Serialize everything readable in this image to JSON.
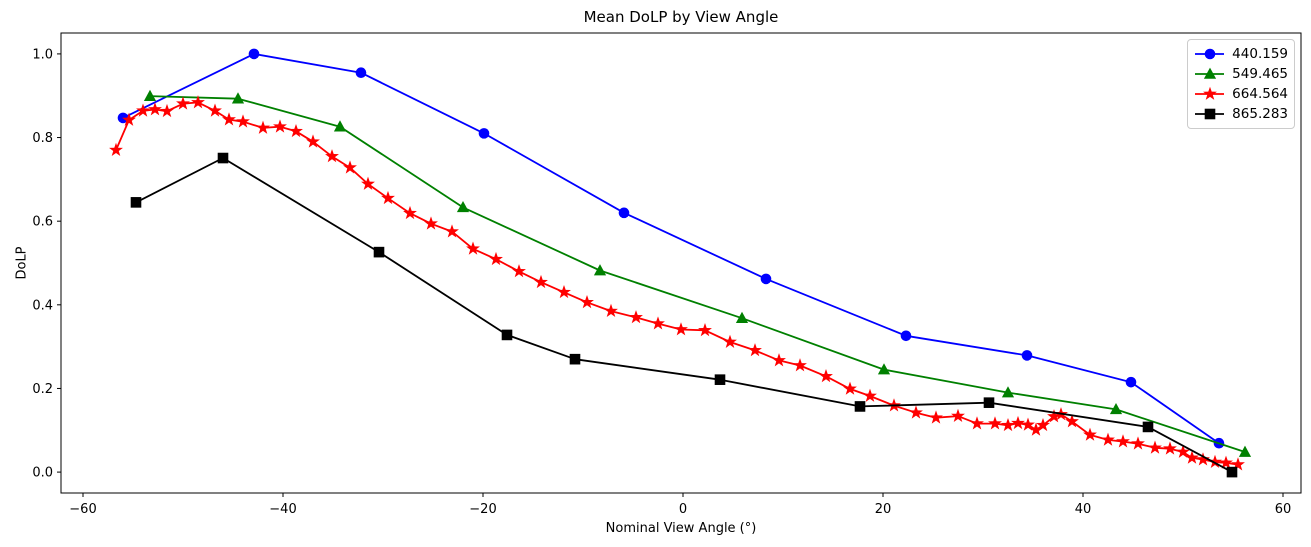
{
  "chart_data": {
    "type": "line",
    "title": "Mean DoLP by View Angle",
    "xlabel": "Nominal View Angle (°)",
    "ylabel": "DoLP",
    "xlim": [
      -62.2,
      61.8
    ],
    "ylim": [
      -0.05,
      1.05
    ],
    "grid": false,
    "x_ticks": {
      "values": [
        -60,
        -40,
        -20,
        0,
        20,
        40,
        60
      ],
      "labels": [
        "−60",
        "−40",
        "−20",
        "0",
        "20",
        "40",
        "60"
      ]
    },
    "y_ticks": {
      "values": [
        0.0,
        0.2,
        0.4,
        0.6,
        0.8,
        1.0
      ],
      "labels": [
        "0.0",
        "0.2",
        "0.4",
        "0.6",
        "0.8",
        "1.0"
      ]
    },
    "legend": {
      "position": "upper right",
      "border_color": "#cccccc"
    },
    "series": [
      {
        "name": "440.159",
        "color": "#0000ff",
        "marker": "circle",
        "x": [
          -56.0,
          -42.9,
          -32.2,
          -19.9,
          -5.9,
          8.3,
          22.3,
          34.4,
          44.8,
          53.6
        ],
        "y": [
          0.847,
          1.0,
          0.955,
          0.81,
          0.62,
          0.462,
          0.326,
          0.279,
          0.215,
          0.069
        ]
      },
      {
        "name": "549.465",
        "color": "#008000",
        "marker": "triangle",
        "x": [
          -53.3,
          -44.5,
          -34.3,
          -22.0,
          -8.3,
          5.9,
          20.1,
          32.5,
          43.3,
          56.2
        ],
        "y": [
          0.899,
          0.893,
          0.826,
          0.633,
          0.482,
          0.368,
          0.245,
          0.19,
          0.15,
          0.048
        ]
      },
      {
        "name": "664.564",
        "color": "#ff0000",
        "marker": "star",
        "x": [
          -56.7,
          -55.4,
          -54.0,
          -52.8,
          -51.6,
          -50.0,
          -48.5,
          -46.8,
          -45.4,
          -44.0,
          -42.0,
          -40.3,
          -38.7,
          -37.0,
          -35.1,
          -33.3,
          -31.5,
          -29.5,
          -27.3,
          -25.2,
          -23.1,
          -21.0,
          -18.7,
          -16.4,
          -14.2,
          -11.9,
          -9.6,
          -7.2,
          -4.7,
          -2.5,
          -0.2,
          2.2,
          4.7,
          7.2,
          9.6,
          11.7,
          14.3,
          16.7,
          18.7,
          21.1,
          23.3,
          25.3,
          27.5,
          29.4,
          31.2,
          32.5,
          33.5,
          34.5,
          35.3,
          36.0,
          37.1,
          37.8,
          38.9,
          40.7,
          42.5,
          44.0,
          45.5,
          47.2,
          48.7,
          50.0,
          50.9,
          52.0,
          53.2,
          54.3,
          55.5
        ],
        "y": [
          0.77,
          0.842,
          0.864,
          0.867,
          0.863,
          0.881,
          0.884,
          0.864,
          0.843,
          0.838,
          0.823,
          0.826,
          0.815,
          0.79,
          0.755,
          0.728,
          0.689,
          0.655,
          0.619,
          0.594,
          0.575,
          0.534,
          0.509,
          0.48,
          0.454,
          0.43,
          0.406,
          0.385,
          0.37,
          0.355,
          0.341,
          0.339,
          0.311,
          0.291,
          0.267,
          0.255,
          0.229,
          0.199,
          0.182,
          0.159,
          0.142,
          0.13,
          0.134,
          0.116,
          0.116,
          0.112,
          0.117,
          0.113,
          0.101,
          0.112,
          0.133,
          0.138,
          0.121,
          0.089,
          0.077,
          0.073,
          0.068,
          0.058,
          0.056,
          0.048,
          0.034,
          0.03,
          0.024,
          0.022,
          0.018
        ]
      },
      {
        "name": "865.283",
        "color": "#000000",
        "marker": "square",
        "x": [
          -54.7,
          -46.0,
          -30.4,
          -17.6,
          -10.8,
          3.7,
          17.7,
          30.6,
          46.5,
          54.9
        ],
        "y": [
          0.645,
          0.751,
          0.526,
          0.328,
          0.27,
          0.221,
          0.157,
          0.166,
          0.108,
          0.0
        ]
      }
    ]
  }
}
